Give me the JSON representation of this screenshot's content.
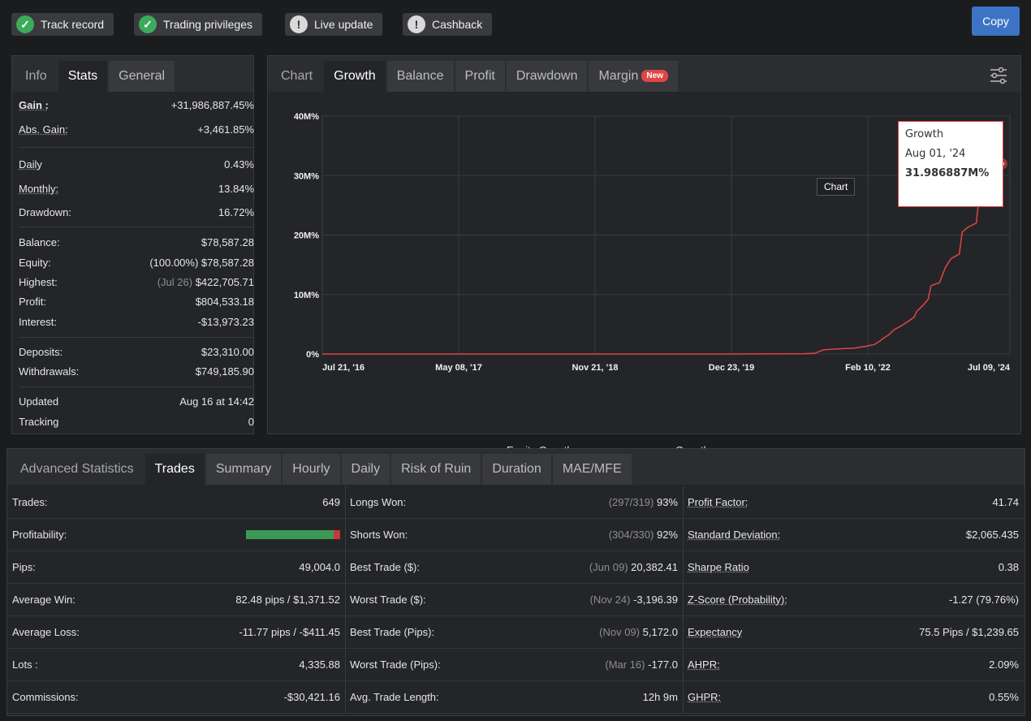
{
  "badges": [
    {
      "label": "Track record",
      "status": "ok",
      "icon": "check-circle-icon"
    },
    {
      "label": "Trading privileges",
      "status": "ok",
      "icon": "check-circle-icon"
    },
    {
      "label": "Live update",
      "status": "warn",
      "icon": "exclamation-circle-icon"
    },
    {
      "label": "Cashback",
      "status": "warn",
      "icon": "exclamation-circle-icon"
    }
  ],
  "copy_label": "Copy",
  "left_tabs": [
    "Info",
    "Stats",
    "General"
  ],
  "left_active": 1,
  "stats": {
    "gain": {
      "label": "Gain :",
      "value": "+31,986,887.45%"
    },
    "abs_gain": {
      "label": "Abs. Gain:",
      "value": "+3,461.85%"
    },
    "daily": {
      "label": "Daily",
      "value": "0.43%"
    },
    "monthly": {
      "label": "Monthly:",
      "value": "13.84%"
    },
    "drawdown": {
      "label": "Drawdown:",
      "value": "16.72%"
    },
    "balance": {
      "label": "Balance:",
      "value": "$78,587.28"
    },
    "equity": {
      "label": "Equity:",
      "prefix": "(100.00%)",
      "value": "$78,587.28"
    },
    "highest": {
      "label": "Highest:",
      "prefix": "(Jul 26)",
      "value": "$422,705.71"
    },
    "profit": {
      "label": "Profit:",
      "value": "$804,533.18"
    },
    "interest": {
      "label": "Interest:",
      "value": "-$13,973.23"
    },
    "deposits": {
      "label": "Deposits:",
      "value": "$23,310.00"
    },
    "withdrawals": {
      "label": "Withdrawals:",
      "value": "$749,185.90"
    },
    "updated": {
      "label": "Updated",
      "value": "Aug 16 at 14:42"
    },
    "tracking": {
      "label": "Tracking",
      "value": "0"
    }
  },
  "chart_tabs": [
    "Chart",
    "Growth",
    "Balance",
    "Profit",
    "Drawdown",
    "Margin"
  ],
  "chart_active": 1,
  "new_pill": "New",
  "chart_data": {
    "type": "line",
    "y_ticks": [
      "0%",
      "10M%",
      "20M%",
      "30M%",
      "40M%"
    ],
    "x_ticks": [
      "Jul 21, '16",
      "May 08, '17",
      "Nov 21, '18",
      "Dec 23, '19",
      "Feb 10, '22",
      "Jul 09, '24"
    ],
    "ylim": [
      0,
      40000000
    ],
    "legend_position": "bottom",
    "grid": true,
    "series": [
      {
        "name": "Equity Growth",
        "color": "#e0a21a"
      },
      {
        "name": "Growth",
        "color": "#e04545"
      }
    ],
    "growth_points": [
      [
        0,
        0
      ],
      [
        0.72,
        0
      ],
      [
        0.85,
        0.05
      ],
      [
        0.87,
        0.12
      ],
      [
        0.88,
        0.5
      ],
      [
        0.885,
        0.7
      ],
      [
        0.9,
        0.8
      ],
      [
        0.92,
        0.9
      ],
      [
        0.94,
        1.0
      ],
      [
        0.96,
        1.3
      ],
      [
        0.975,
        1.6
      ],
      [
        0.985,
        2.2
      ],
      [
        0.99,
        2.6
      ],
      [
        1.0,
        3.2
      ],
      [
        1.01,
        4.1
      ],
      [
        1.02,
        4.6
      ],
      [
        1.035,
        5.5
      ],
      [
        1.045,
        6.2
      ],
      [
        1.05,
        7.2
      ],
      [
        1.06,
        8.1
      ],
      [
        1.07,
        9.2
      ],
      [
        1.075,
        11.5
      ],
      [
        1.09,
        12.0
      ],
      [
        1.1,
        14.5
      ],
      [
        1.11,
        16.0
      ],
      [
        1.125,
        16.8
      ],
      [
        1.13,
        20.5
      ],
      [
        1.14,
        21.3
      ],
      [
        1.155,
        22.0
      ],
      [
        1.16,
        26.5
      ],
      [
        1.175,
        27.5
      ],
      [
        1.18,
        29.5
      ],
      [
        1.19,
        30.8
      ],
      [
        1.2,
        31.99
      ]
    ],
    "tooltip": {
      "title": "Growth",
      "date": "Aug 01, '24",
      "value": "31.986887M%"
    },
    "marker_label": "Chart"
  },
  "bottom_tabs": [
    "Advanced Statistics",
    "Trades",
    "Summary",
    "Hourly",
    "Daily",
    "Risk of Ruin",
    "Duration",
    "MAE/MFE"
  ],
  "bottom_active": 1,
  "col1": [
    {
      "label": "Trades:",
      "value": "649"
    },
    {
      "label": "Profitability:",
      "bar": {
        "won": 0.93,
        "lost": 0.07
      }
    },
    {
      "label": "Pips:",
      "value": "49,004.0"
    },
    {
      "label": "Average Win:",
      "value": "82.48 pips / $1,371.52"
    },
    {
      "label": "Average Loss:",
      "value": "-11.77 pips / -$411.45"
    },
    {
      "label": "Lots :",
      "value": "4,335.88"
    },
    {
      "label": "Commissions:",
      "value": "-$30,421.16"
    }
  ],
  "col2": [
    {
      "label": "Longs Won:",
      "prefix": "(297/319)",
      "value": "93%"
    },
    {
      "label": "Shorts Won:",
      "prefix": "(304/330)",
      "value": "92%"
    },
    {
      "label": "Best Trade ($):",
      "prefix": "(Jun 09)",
      "value": "20,382.41"
    },
    {
      "label": "Worst Trade ($):",
      "prefix": "(Nov 24)",
      "value": "-3,196.39"
    },
    {
      "label": "Best Trade (Pips):",
      "prefix": "(Nov 09)",
      "value": "5,172.0"
    },
    {
      "label": "Worst Trade (Pips):",
      "prefix": "(Mar 16)",
      "value": "-177.0"
    },
    {
      "label": "Avg. Trade Length:",
      "value": "12h 9m"
    }
  ],
  "col3": [
    {
      "label": "Profit Factor:",
      "value": "41.74"
    },
    {
      "label": "Standard Deviation:",
      "value": "$2,065.435"
    },
    {
      "label": "Sharpe Ratio",
      "value": "0.38"
    },
    {
      "label": "Z-Score (Probability):",
      "value": "-1.27 (79.76%)"
    },
    {
      "label": "Expectancy",
      "value": "75.5 Pips / $1,239.65"
    },
    {
      "label": "AHPR:",
      "value": "2.09%"
    },
    {
      "label": "GHPR:",
      "value": "0.55%"
    }
  ]
}
